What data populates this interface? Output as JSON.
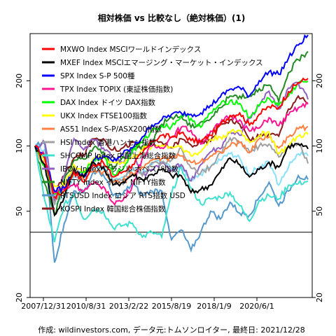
{
  "chart_data": {
    "type": "line",
    "title": "相対株価 vs 比較なし（絶対株価）(1)",
    "footer": "作成: wildinvestors.com, データ元:トムソンロイター, 最終日: 2021/12/28",
    "y_scale": "log",
    "ylim": [
      20,
      330
    ],
    "y_ticks": [
      20,
      50,
      100,
      200
    ],
    "y_tick_labels": [
      "20",
      "50",
      "100",
      "200"
    ],
    "x_tick_labels": [
      "2007/12/31",
      "2010/8/31",
      "2013/2/22",
      "2015/8/19",
      "2018/1/9",
      "2020/6/1"
    ],
    "reference_line": 40,
    "legend_position": "top-left",
    "x": [
      "2007/12/31",
      "2008/6/30",
      "2008/12/31",
      "2009/6/30",
      "2009/12/31",
      "2010/6/30",
      "2010/12/31",
      "2011/6/30",
      "2011/12/31",
      "2012/6/30",
      "2012/12/31",
      "2013/6/30",
      "2013/12/31",
      "2014/6/30",
      "2014/12/31",
      "2015/6/30",
      "2015/12/31",
      "2016/6/30",
      "2016/12/31",
      "2017/6/30",
      "2017/12/31",
      "2018/6/30",
      "2018/12/31",
      "2019/6/30",
      "2019/12/31",
      "2020/6/30",
      "2020/12/31",
      "2021/6/30",
      "2021/12/28"
    ],
    "series": [
      {
        "name": "MXWO Index MSCIワールドインデックス",
        "color": "#ff0000",
        "values": [
          100,
          88,
          58,
          62,
          76,
          68,
          82,
          84,
          72,
          76,
          82,
          92,
          105,
          112,
          110,
          115,
          106,
          105,
          112,
          125,
          138,
          142,
          125,
          140,
          152,
          150,
          178,
          196,
          205
        ]
      },
      {
        "name": "MXEF Index MSCIエマージング・マーケット・インデックス",
        "color": "#000000",
        "values": [
          100,
          82,
          48,
          58,
          78,
          72,
          84,
          80,
          66,
          68,
          74,
          70,
          74,
          78,
          73,
          73,
          61,
          63,
          66,
          76,
          88,
          82,
          72,
          78,
          84,
          80,
          100,
          102,
          97
        ]
      },
      {
        "name": "SPX Index S-P 500種",
        "color": "#0000ff",
        "values": [
          100,
          88,
          62,
          64,
          77,
          72,
          86,
          90,
          85,
          92,
          98,
          110,
          125,
          132,
          140,
          142,
          140,
          142,
          154,
          168,
          183,
          186,
          170,
          200,
          220,
          214,
          254,
          292,
          325
        ]
      },
      {
        "name": "TPX Index TOPIX (東証株価指数)",
        "color": "#ff1493",
        "values": [
          100,
          90,
          61,
          63,
          67,
          62,
          67,
          65,
          55,
          56,
          66,
          88,
          100,
          98,
          110,
          122,
          118,
          102,
          117,
          127,
          138,
          132,
          117,
          121,
          135,
          124,
          139,
          150,
          156
        ]
      },
      {
        "name": "DAX Index ドイツ DAX指数",
        "color": "#00ff00",
        "values": [
          100,
          80,
          60,
          62,
          75,
          76,
          86,
          90,
          74,
          78,
          95,
          104,
          118,
          124,
          123,
          138,
          134,
          122,
          142,
          155,
          162,
          157,
          135,
          154,
          166,
          154,
          170,
          196,
          199
        ]
      },
      {
        "name": "UKX Index FTSE100指数",
        "color": "#ffff00",
        "values": [
          100,
          85,
          65,
          66,
          82,
          75,
          88,
          89,
          84,
          84,
          88,
          96,
          100,
          101,
          99,
          100,
          90,
          94,
          107,
          110,
          115,
          118,
          104,
          112,
          116,
          92,
          100,
          111,
          113
        ]
      },
      {
        "name": "AS51 Index S-P/ASX200指数",
        "color": "#ff8040",
        "values": [
          100,
          80,
          61,
          64,
          76,
          70,
          76,
          76,
          68,
          68,
          75,
          80,
          86,
          88,
          88,
          90,
          84,
          85,
          90,
          94,
          100,
          104,
          93,
          108,
          110,
          98,
          110,
          120,
          123
        ]
      },
      {
        "name": "HSI Index 香港ハンセン指数",
        "color": "#a0a0a0",
        "values": [
          100,
          80,
          54,
          66,
          80,
          74,
          84,
          81,
          68,
          70,
          80,
          73,
          84,
          84,
          86,
          98,
          79,
          75,
          80,
          93,
          109,
          104,
          94,
          100,
          102,
          89,
          99,
          103,
          83
        ]
      },
      {
        "name": "SHCOMP Index 中国上海総合指数",
        "color": "#40e0d0",
        "values": [
          100,
          56,
          36,
          54,
          60,
          46,
          51,
          50,
          42,
          43,
          44,
          38,
          40,
          38,
          60,
          80,
          64,
          54,
          57,
          58,
          61,
          53,
          45,
          56,
          59,
          57,
          66,
          67,
          69
        ]
      },
      {
        "name": "IBOV Index ブラジル ボベスパ指数",
        "color": "#9060c0",
        "values": [
          100,
          104,
          55,
          73,
          108,
          96,
          107,
          98,
          89,
          84,
          94,
          73,
          78,
          83,
          77,
          82,
          69,
          82,
          94,
          97,
          116,
          112,
          134,
          153,
          179,
          148,
          185,
          196,
          164
        ]
      },
      {
        "name": "NIFTY Index インド NIFTY指数",
        "color": "#228b22",
        "values": [
          100,
          67,
          48,
          70,
          86,
          87,
          98,
          94,
          78,
          89,
          98,
          100,
          104,
          126,
          136,
          137,
          122,
          129,
          133,
          150,
          170,
          170,
          170,
          184,
          191,
          160,
          218,
          250,
          273
        ]
      },
      {
        "name": "RTSUSD Index ロシア RTS指数 USD",
        "color": "#5599cc",
        "values": [
          100,
          103,
          29,
          44,
          62,
          61,
          76,
          74,
          59,
          60,
          67,
          59,
          62,
          62,
          37,
          41,
          33,
          40,
          50,
          46,
          55,
          49,
          48,
          58,
          68,
          53,
          62,
          73,
          70
        ]
      },
      {
        "name": "KOSPI Index 韓国総合株価指数",
        "color": "#8b1a1a",
        "values": [
          100,
          88,
          60,
          73,
          88,
          91,
          108,
          108,
          96,
          98,
          104,
          96,
          104,
          104,
          98,
          108,
          101,
          103,
          105,
          126,
          132,
          126,
          107,
          111,
          114,
          111,
          148,
          170,
          157
        ]
      },
      {
        "name": "(light blue)",
        "color": "#87e0ff",
        "values": [
          100,
          96,
          54,
          58,
          72,
          70,
          80,
          79,
          70,
          72,
          78,
          75,
          82,
          85,
          78,
          80,
          70,
          74,
          80,
          86,
          92,
          88,
          74,
          80,
          84,
          66,
          80,
          92,
          90
        ]
      }
    ]
  }
}
